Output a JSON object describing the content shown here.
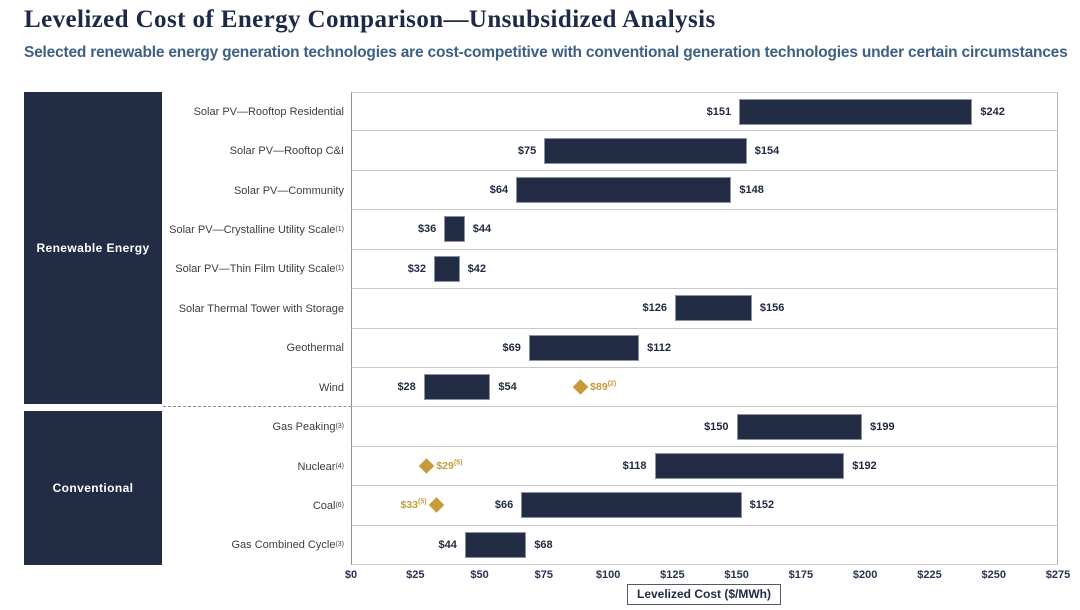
{
  "header": {
    "title": "Levelized Cost of Energy Comparison—Unsubsidized Analysis",
    "subtitle": "Selected renewable energy generation technologies are cost-competitive with conventional generation technologies under certain circumstances"
  },
  "groups": [
    {
      "label": "Renewable Energy"
    },
    {
      "label": "Conventional"
    }
  ],
  "axis": {
    "title": "Levelized Cost ($/MWh)",
    "min": 0,
    "max": 275,
    "step": 25,
    "tick_labels": [
      "$0",
      "$25",
      "$50",
      "$75",
      "$100",
      "$125",
      "$150",
      "$175",
      "$200",
      "$225",
      "$250",
      "$275"
    ]
  },
  "colors": {
    "navy": "#232c45",
    "gold": "#c79a3b",
    "subtitle_blue": "#3d6185",
    "grid": "#c9c9c9"
  },
  "chart_data": {
    "type": "bar",
    "subtype": "horizontal-range",
    "title": "Levelized Cost of Energy Comparison—Unsubsidized Analysis",
    "xlabel": "Levelized Cost ($/MWh)",
    "xlim": [
      0,
      275
    ],
    "rows": [
      {
        "group": "renewable",
        "label": "Solar PV—Rooftop Residential",
        "sup": "",
        "low": 151,
        "high": 242,
        "low_label": "$151",
        "high_label": "$242"
      },
      {
        "group": "renewable",
        "label": "Solar PV—Rooftop C&I",
        "sup": "",
        "low": 75,
        "high": 154,
        "low_label": "$75",
        "high_label": "$154"
      },
      {
        "group": "renewable",
        "label": "Solar PV—Community",
        "sup": "",
        "low": 64,
        "high": 148,
        "low_label": "$64",
        "high_label": "$148"
      },
      {
        "group": "renewable",
        "label": "Solar PV—Crystalline Utility Scale",
        "sup": "(1)",
        "low": 36,
        "high": 44,
        "low_label": "$36",
        "high_label": "$44"
      },
      {
        "group": "renewable",
        "label": "Solar PV—Thin Film Utility Scale",
        "sup": "(1)",
        "low": 32,
        "high": 42,
        "low_label": "$32",
        "high_label": "$42"
      },
      {
        "group": "renewable",
        "label": "Solar Thermal Tower with Storage",
        "sup": "",
        "low": 126,
        "high": 156,
        "low_label": "$126",
        "high_label": "$156"
      },
      {
        "group": "renewable",
        "label": "Geothermal",
        "sup": "",
        "low": 69,
        "high": 112,
        "low_label": "$69",
        "high_label": "$112"
      },
      {
        "group": "renewable",
        "label": "Wind",
        "sup": "",
        "low": 28,
        "high": 54,
        "low_label": "$28",
        "high_label": "$54",
        "marker": {
          "value": 89,
          "label": "$89",
          "sup": "(2)",
          "side": "right"
        }
      },
      {
        "group": "conventional",
        "label": "Gas Peaking",
        "sup": "(3)",
        "low": 150,
        "high": 199,
        "low_label": "$150",
        "high_label": "$199"
      },
      {
        "group": "conventional",
        "label": "Nuclear",
        "sup": "(4)",
        "low": 118,
        "high": 192,
        "low_label": "$118",
        "high_label": "$192",
        "marker": {
          "value": 29,
          "label": "$29",
          "sup": "(5)",
          "side": "right"
        }
      },
      {
        "group": "conventional",
        "label": "Coal",
        "sup": "(6)",
        "low": 66,
        "high": 152,
        "low_label": "$66",
        "high_label": "$152",
        "marker": {
          "value": 33,
          "label": "$33",
          "sup": "(5)",
          "side": "left"
        }
      },
      {
        "group": "conventional",
        "label": "Gas Combined Cycle",
        "sup": "(3)",
        "low": 44,
        "high": 68,
        "low_label": "$44",
        "high_label": "$68"
      }
    ]
  }
}
